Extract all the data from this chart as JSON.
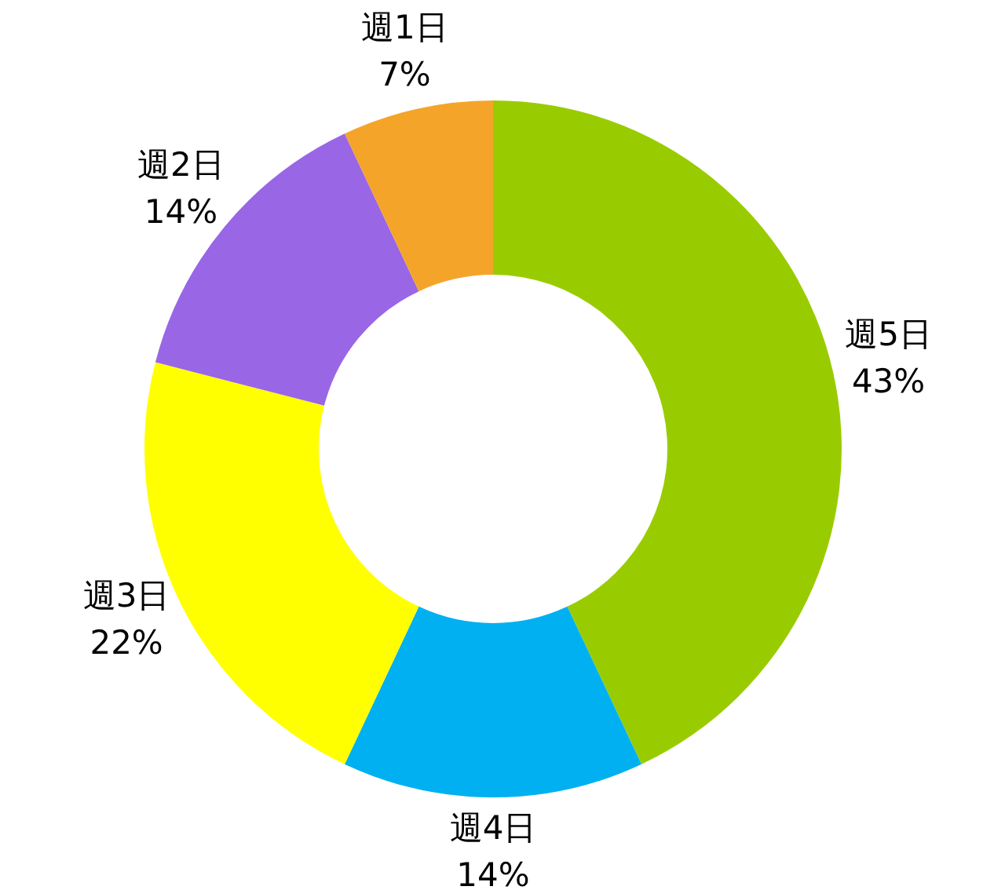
{
  "chart_data": {
    "type": "donut",
    "categories": [
      "週5日",
      "週4日",
      "週3日",
      "週2日",
      "週1日"
    ],
    "values": [
      43,
      14,
      22,
      14,
      7
    ],
    "value_labels": [
      "43%",
      "14%",
      "22%",
      "14%",
      "7%"
    ],
    "colors": [
      "#99cc00",
      "#00b0f0",
      "#ffff00",
      "#9966e6",
      "#f5a42a"
    ],
    "legend": false
  }
}
